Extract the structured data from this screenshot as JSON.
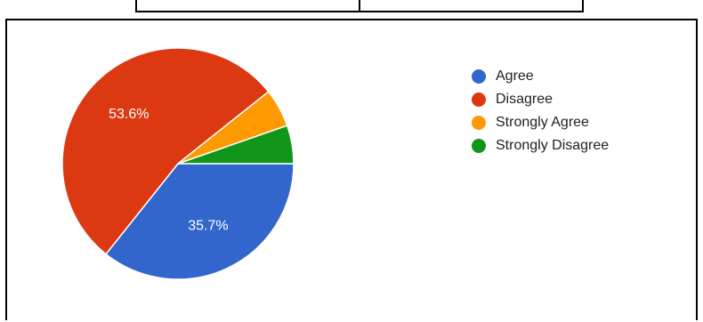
{
  "chart_data": {
    "type": "pie",
    "title": "",
    "legend_position": "right",
    "categories": [
      "Agree",
      "Disagree",
      "Strongly Agree",
      "Strongly Disagree"
    ],
    "values": [
      35.7,
      53.6,
      5.35,
      5.35
    ],
    "colors": [
      "#3366cc",
      "#dc3912",
      "#ff9900",
      "#109618"
    ],
    "data_labels": [
      "35.7%",
      "53.6%",
      "",
      ""
    ]
  }
}
